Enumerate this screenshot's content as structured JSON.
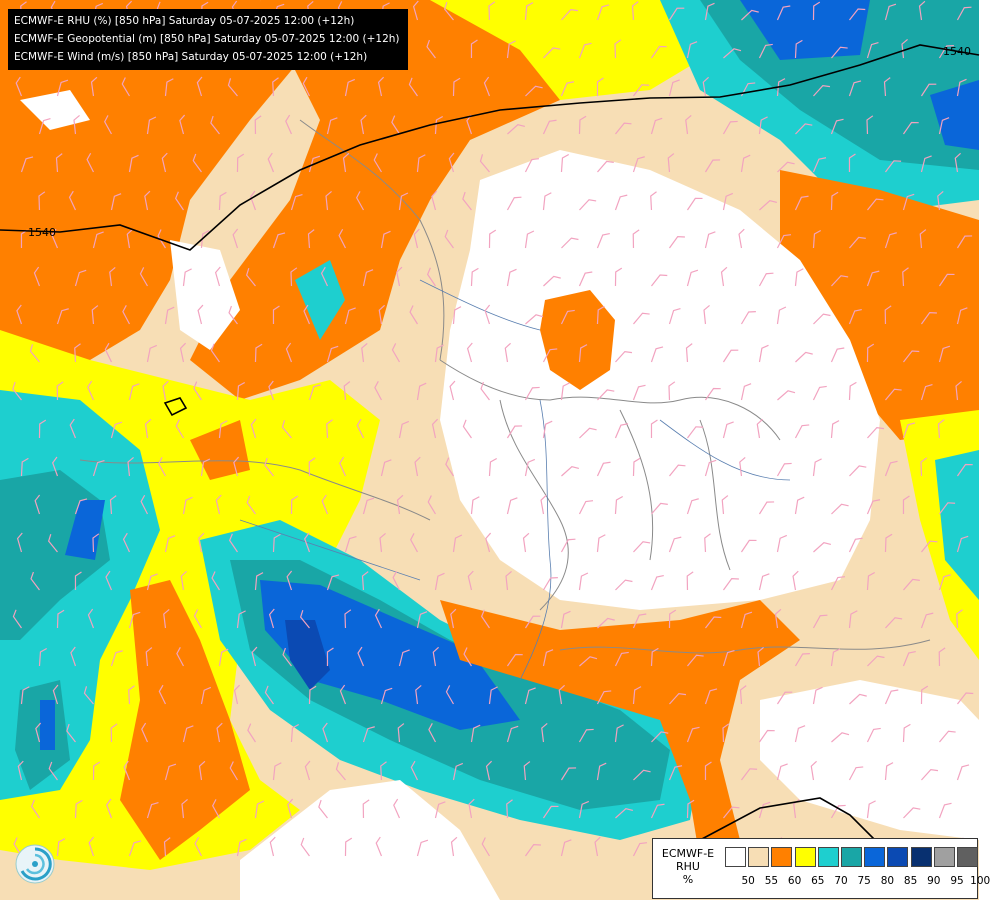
{
  "header": {
    "lines": [
      "ECMWF-E RHU (%) [850 hPa] Saturday 05-07-2025 12:00 (+12h)",
      "ECMWF-E Geopotential (m) [850 hPa] Saturday 05-07-2025 12:00 (+12h)",
      "ECMWF-E Wind (m/s) [850 hPa] Saturday 05-07-2025 12:00 (+12h)"
    ]
  },
  "contour_labels": [
    "1540",
    "1540"
  ],
  "legend": {
    "title_lines": [
      "ECMWF-E",
      "RHU",
      "%"
    ],
    "colors": [
      "#ffffff",
      "#f7deb5",
      "#ff8000",
      "#ffff00",
      "#1ecfcf",
      "#19a6a6",
      "#0a66d9",
      "#0b4ab3",
      "#083070",
      "#a0a0a0",
      "#606060"
    ],
    "ticks": [
      "50",
      "55",
      "60",
      "65",
      "70",
      "75",
      "80",
      "85",
      "90",
      "95",
      "100"
    ]
  },
  "colors": {
    "rhu_50": "#ffffff",
    "rhu_55": "#f7deb5",
    "rhu_60": "#ff8000",
    "rhu_65": "#ffff00",
    "rhu_70": "#1ecfcf",
    "rhu_75": "#19a6a6",
    "rhu_80": "#0a66d9",
    "rhu_85": "#0b4ab3",
    "rhu_90": "#083070",
    "wind_barb": "#f2a3c0",
    "geopotential_line": "#000000",
    "border_line": "#8a8a8a",
    "river_line": "#5a7fb0"
  }
}
